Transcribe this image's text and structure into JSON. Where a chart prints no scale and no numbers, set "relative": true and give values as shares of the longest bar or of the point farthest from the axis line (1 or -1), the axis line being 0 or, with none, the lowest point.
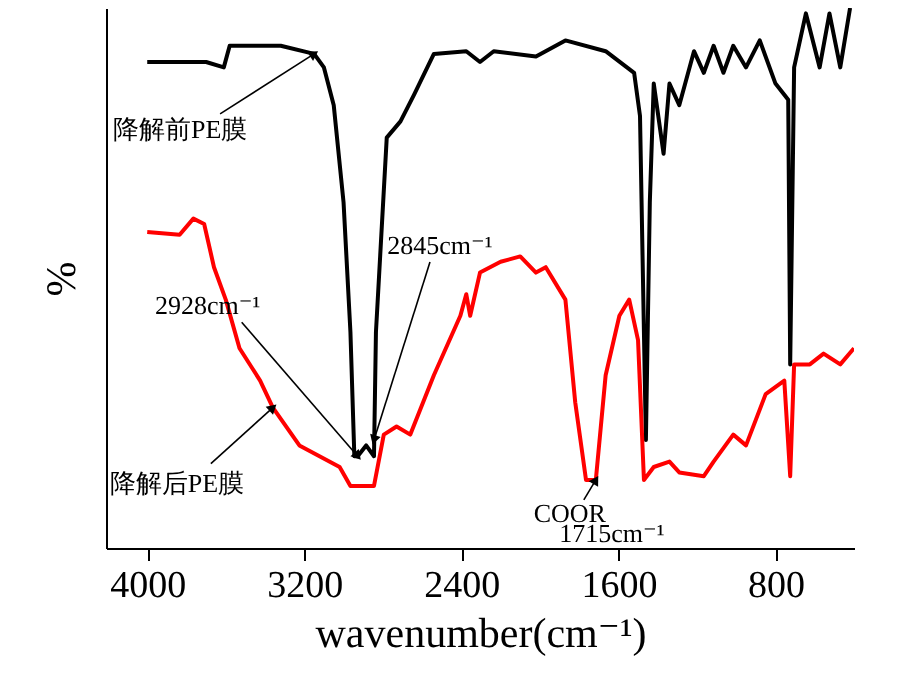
{
  "chart_data": {
    "type": "line",
    "relative": true,
    "legend": "left",
    "xlabel": "wavenumber(cm⁻¹)",
    "ylabel": "%",
    "xlim": [
      4210,
      400
    ],
    "xticks": [
      4000,
      3200,
      2400,
      1600,
      800
    ],
    "series": [
      {
        "name": "降解前PE膜",
        "color": "#000000",
        "x": [
          4000,
          3700,
          3610,
          3580,
          3320,
          3150,
          3100,
          3050,
          3000,
          2965,
          2945,
          2928,
          2885,
          2845,
          2835,
          2780,
          2710,
          2640,
          2540,
          2375,
          2305,
          2235,
          2020,
          1870,
          1665,
          1520,
          1490,
          1460,
          1440,
          1420,
          1370,
          1340,
          1290,
          1215,
          1165,
          1115,
          1065,
          1015,
          950,
          880,
          800,
          735,
          725,
          705,
          645,
          575,
          525,
          470,
          420
        ],
        "values": [
          0.9,
          0.9,
          0.89,
          0.93,
          0.93,
          0.915,
          0.89,
          0.82,
          0.64,
          0.4,
          0.17,
          0.17,
          0.19,
          0.17,
          0.4,
          0.76,
          0.79,
          0.84,
          0.915,
          0.92,
          0.9,
          0.92,
          0.91,
          0.94,
          0.92,
          0.88,
          0.8,
          0.2,
          0.64,
          0.86,
          0.73,
          0.86,
          0.82,
          0.92,
          0.88,
          0.93,
          0.88,
          0.93,
          0.89,
          0.94,
          0.86,
          0.83,
          0.34,
          0.89,
          0.99,
          0.89,
          0.99,
          0.89,
          1.0
        ]
      },
      {
        "name": "降解后PE膜",
        "color": "#ff0000",
        "x": [
          4000,
          3835,
          3765,
          3710,
          3660,
          3600,
          3530,
          3425,
          3360,
          3225,
          3020,
          2965,
          2845,
          2795,
          2730,
          2660,
          2540,
          2405,
          2375,
          2355,
          2305,
          2200,
          2100,
          2020,
          1970,
          1870,
          1820,
          1765,
          1715,
          1665,
          1595,
          1545,
          1500,
          1470,
          1420,
          1340,
          1290,
          1165,
          1115,
          1015,
          950,
          850,
          755,
          725,
          705,
          625,
          555,
          470,
          400
        ],
        "values": [
          0.585,
          0.58,
          0.61,
          0.6,
          0.52,
          0.46,
          0.37,
          0.31,
          0.26,
          0.19,
          0.15,
          0.115,
          0.115,
          0.21,
          0.225,
          0.21,
          0.32,
          0.43,
          0.47,
          0.43,
          0.51,
          0.53,
          0.54,
          0.51,
          0.52,
          0.46,
          0.27,
          0.126,
          0.126,
          0.32,
          0.43,
          0.46,
          0.385,
          0.126,
          0.15,
          0.16,
          0.14,
          0.133,
          0.16,
          0.21,
          0.19,
          0.285,
          0.31,
          0.133,
          0.34,
          0.34,
          0.36,
          0.34,
          0.37
        ]
      }
    ],
    "annotations": [
      {
        "text": "2928cm⁻¹",
        "x": 2928,
        "y": 0.17
      },
      {
        "text": "2845cm⁻¹",
        "x": 2845,
        "y": 0.2
      },
      {
        "text": "COOR",
        "x": 1715,
        "y": 0.126
      },
      {
        "text": "1715cm⁻¹",
        "x": 1715,
        "y": 0.126
      }
    ]
  }
}
